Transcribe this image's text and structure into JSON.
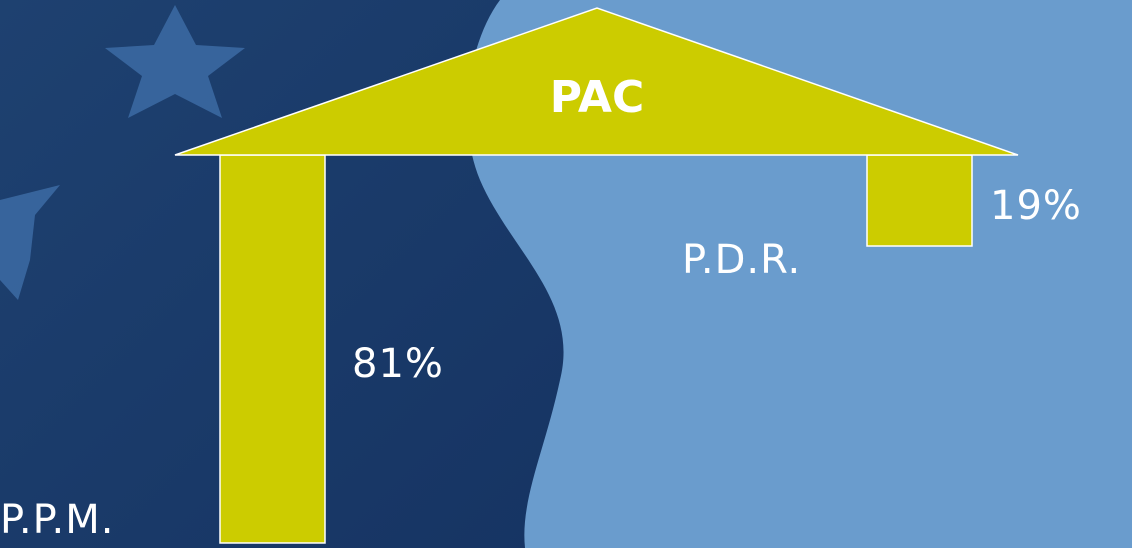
{
  "chart_data": {
    "type": "bar",
    "title": "PAC",
    "categories": [
      "P.P.M.",
      "P.D.R."
    ],
    "values": [
      81,
      19
    ],
    "value_labels": [
      "81%",
      "19%"
    ],
    "color": "#cccc00"
  }
}
